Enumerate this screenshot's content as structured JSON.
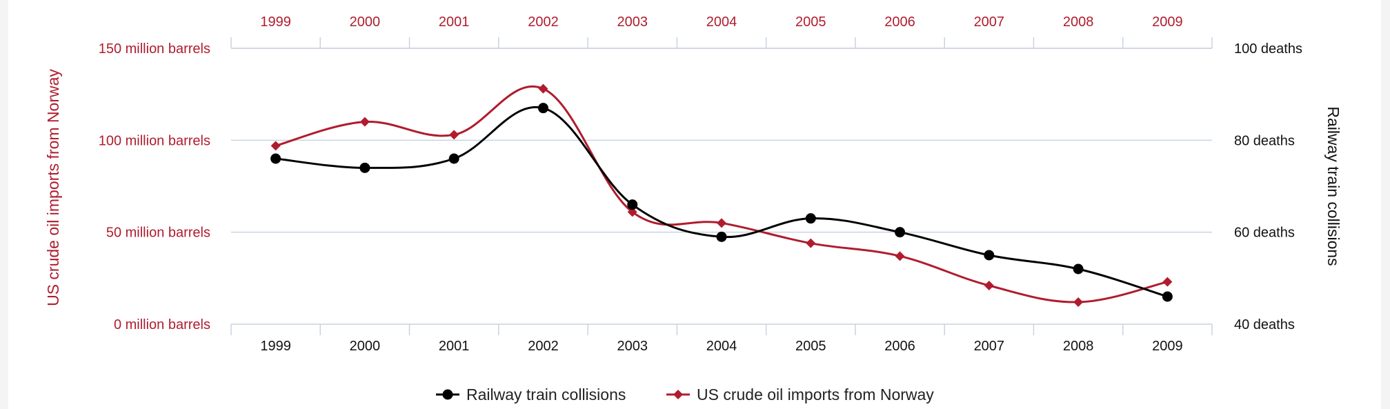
{
  "chart_data": {
    "type": "line",
    "categories": [
      "1999",
      "2000",
      "2001",
      "2002",
      "2003",
      "2004",
      "2005",
      "2006",
      "2007",
      "2008",
      "2009"
    ],
    "series": [
      {
        "name": "Railway train collisions",
        "axis": "right",
        "color": "#000000",
        "marker": "circle",
        "values": [
          76,
          74,
          76,
          87,
          66,
          59,
          63,
          60,
          55,
          52,
          46
        ]
      },
      {
        "name": "US crude oil imports from Norway",
        "axis": "left",
        "color": "#b01c2e",
        "marker": "diamond",
        "values": [
          97,
          110,
          103,
          128,
          61,
          55,
          44,
          37,
          21,
          12,
          23
        ]
      }
    ],
    "left_axis": {
      "title": "US crude oil imports from Norway",
      "ticks": [
        {
          "value": 150,
          "label": "150 million barrels"
        },
        {
          "value": 100,
          "label": "100 million barrels"
        },
        {
          "value": 50,
          "label": "50 million barrels"
        },
        {
          "value": 0,
          "label": "0 million barrels"
        }
      ],
      "range": [
        0,
        150
      ],
      "color": "#b01c2e"
    },
    "right_axis": {
      "title": "Railway train collisions",
      "ticks": [
        {
          "value": 100,
          "label": "100 deaths"
        },
        {
          "value": 80,
          "label": "80 deaths"
        },
        {
          "value": 60,
          "label": "60 deaths"
        },
        {
          "value": 40,
          "label": "40 deaths"
        }
      ],
      "range": [
        40,
        100
      ],
      "color": "#111111"
    },
    "top_axis_color": "#b01c2e",
    "grid": true,
    "legend_position": "bottom-center"
  }
}
